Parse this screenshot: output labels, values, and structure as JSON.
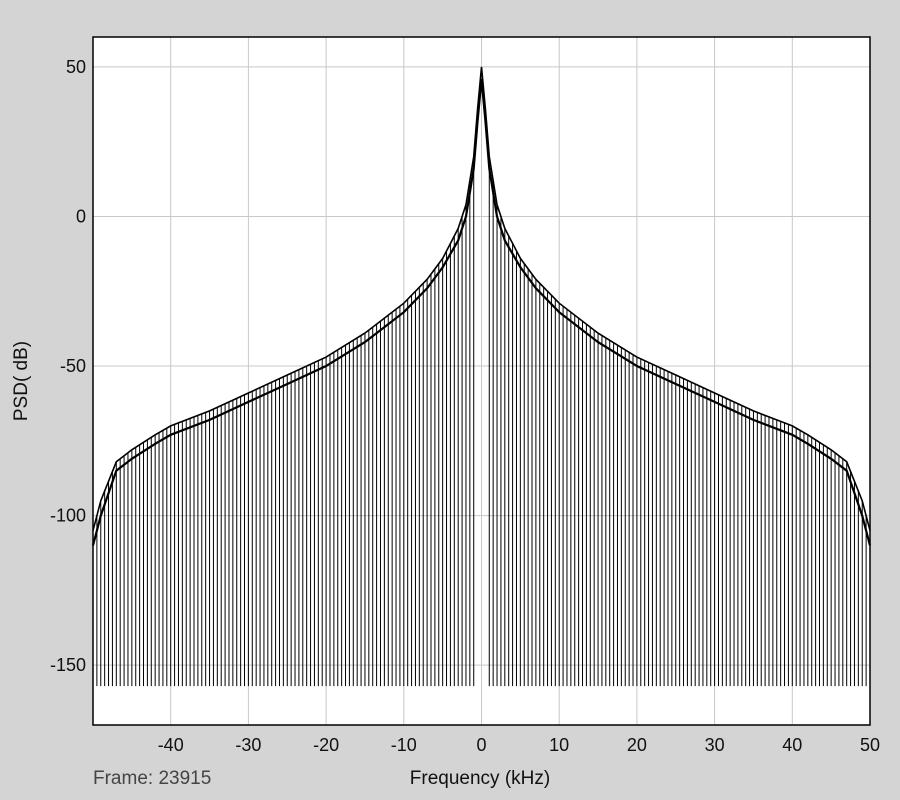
{
  "frame_label": "Frame: 23915",
  "chart_data": {
    "type": "line",
    "title": "",
    "xlabel": "Frequency (kHz)",
    "ylabel": "PSD( dB)",
    "xlim": [
      -50,
      50
    ],
    "ylim": [
      -170,
      60
    ],
    "xticks": [
      -40,
      -30,
      -20,
      -10,
      0,
      10,
      20,
      30,
      40,
      50
    ],
    "yticks": [
      50,
      0,
      -50,
      -100,
      -150
    ],
    "grid": true,
    "legend": "none",
    "line_color": "#000000",
    "series": [
      {
        "x": [
          -50,
          -49,
          -47,
          -45,
          -42,
          -40,
          -35,
          -30,
          -25,
          -20,
          -15,
          -10,
          -7,
          -5,
          -3,
          -2,
          -1,
          -0.5,
          0,
          0.5,
          1,
          2,
          3,
          5,
          7,
          10,
          15,
          20,
          25,
          30,
          35,
          40,
          42,
          45,
          47,
          49,
          50
        ],
        "values": [
          -105,
          -95,
          -82,
          -78,
          -73,
          -70,
          -65,
          -59,
          -53,
          -47,
          -39,
          -29,
          -21,
          -14,
          -4,
          4,
          20,
          36,
          50,
          36,
          20,
          4,
          -4,
          -14,
          -21,
          -29,
          -39,
          -47,
          -53,
          -59,
          -65,
          -70,
          -73,
          -78,
          -82,
          -95,
          -105
        ]
      },
      {
        "x": [
          -50,
          -49,
          -47,
          -45,
          -42,
          -40,
          -35,
          -30,
          -25,
          -20,
          -15,
          -10,
          -7,
          -5,
          -3,
          -2,
          -1,
          -0.5,
          0,
          0.5,
          1,
          2,
          3,
          5,
          7,
          10,
          15,
          20,
          25,
          30,
          35,
          40,
          42,
          45,
          47,
          49,
          50
        ],
        "values": [
          -110,
          -100,
          -85,
          -81,
          -76,
          -73,
          -68,
          -62,
          -56,
          -50,
          -42,
          -32,
          -24,
          -17,
          -8,
          0,
          16,
          32,
          46,
          32,
          16,
          0,
          -8,
          -17,
          -24,
          -32,
          -42,
          -50,
          -56,
          -62,
          -68,
          -73,
          -76,
          -81,
          -85,
          -100,
          -110
        ]
      }
    ],
    "spikes": {
      "spacing_khz": 0.5,
      "floor_db": -157,
      "gap": [
        -1,
        1
      ]
    }
  }
}
